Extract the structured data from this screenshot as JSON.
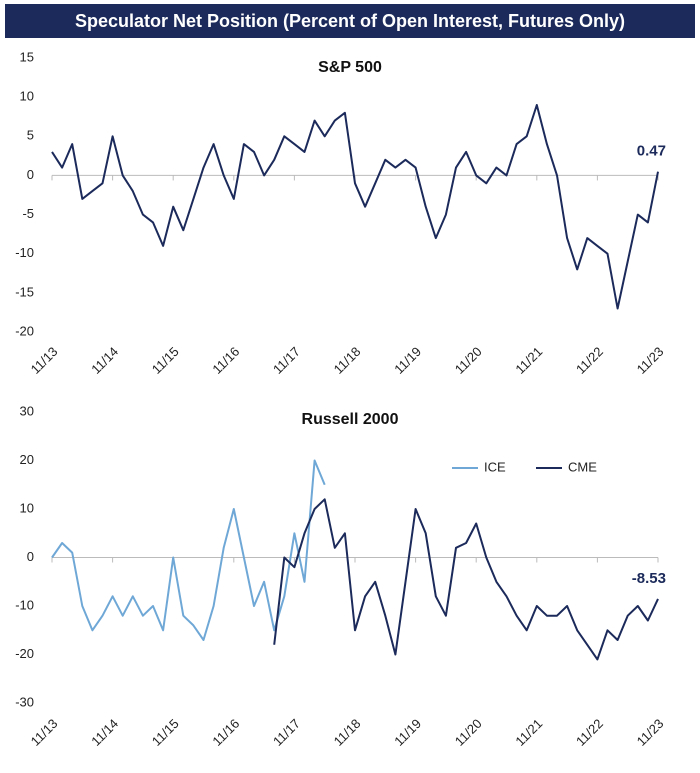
{
  "header": {
    "title": "Speculator Net Position (Percent of Open Interest, Futures Only)"
  },
  "chart_data": [
    {
      "type": "line",
      "title": "S&P 500",
      "categories": [
        "11/13",
        null,
        null,
        null,
        null,
        null,
        "11/14",
        null,
        null,
        null,
        null,
        null,
        "11/15",
        null,
        null,
        null,
        null,
        null,
        "11/16",
        null,
        null,
        null,
        null,
        null,
        "11/17",
        null,
        null,
        null,
        null,
        null,
        "11/18",
        null,
        null,
        null,
        null,
        null,
        "11/19",
        null,
        null,
        null,
        null,
        null,
        "11/20",
        null,
        null,
        null,
        null,
        null,
        "11/21",
        null,
        null,
        null,
        null,
        null,
        "11/22",
        null,
        null,
        null,
        null,
        null,
        "11/23"
      ],
      "series": [
        {
          "name": "S&P 500",
          "color": "#1b2a5a",
          "values": [
            3,
            1,
            4,
            -3,
            -2,
            -1,
            5,
            0,
            -2,
            -5,
            -6,
            -9,
            -4,
            -7,
            -3,
            1,
            4,
            0,
            -3,
            4,
            3,
            0,
            2,
            5,
            4,
            3,
            7,
            5,
            7,
            8,
            -1,
            -4,
            -1,
            2,
            1,
            2,
            1,
            -4,
            -8,
            -5,
            1,
            3,
            0,
            -1,
            1,
            0,
            4,
            5,
            9,
            4,
            0,
            -8,
            -12,
            -8,
            -9,
            -10,
            -17,
            -11,
            -5,
            -6,
            0.47
          ]
        }
      ],
      "annotations": [
        {
          "series": 0,
          "index": 60
        }
      ],
      "ylim": [
        -20,
        15
      ],
      "yticks": [
        -20,
        -15,
        -10,
        -5,
        0,
        5,
        10,
        15
      ],
      "legend": false
    },
    {
      "type": "line",
      "title": "Russell 2000",
      "categories": [
        "11/13",
        null,
        null,
        null,
        null,
        null,
        "11/14",
        null,
        null,
        null,
        null,
        null,
        "11/15",
        null,
        null,
        null,
        null,
        null,
        "11/16",
        null,
        null,
        null,
        null,
        null,
        "11/17",
        null,
        null,
        null,
        null,
        null,
        "11/18",
        null,
        null,
        null,
        null,
        null,
        "11/19",
        null,
        null,
        null,
        null,
        null,
        "11/20",
        null,
        null,
        null,
        null,
        null,
        "11/21",
        null,
        null,
        null,
        null,
        null,
        "11/22",
        null,
        null,
        null,
        null,
        null,
        "11/23"
      ],
      "series": [
        {
          "name": "ICE",
          "color": "#6fa8d6",
          "values": [
            0,
            3,
            1,
            -10,
            -15,
            -12,
            -8,
            -12,
            -8,
            -12,
            -10,
            -15,
            0,
            -12,
            -14,
            -17,
            -10,
            2,
            10,
            0,
            -10,
            -5,
            -15,
            -8,
            5,
            -5,
            20,
            15,
            null,
            null,
            null,
            null,
            null,
            null,
            null,
            null,
            null,
            null,
            null,
            null,
            null,
            null,
            null,
            null,
            null,
            null,
            null,
            null,
            null,
            null,
            null,
            null,
            null,
            null,
            null,
            null,
            null,
            null,
            null,
            null,
            null
          ]
        },
        {
          "name": "CME",
          "color": "#1b2a5a",
          "values": [
            null,
            null,
            null,
            null,
            null,
            null,
            null,
            null,
            null,
            null,
            null,
            null,
            null,
            null,
            null,
            null,
            null,
            null,
            null,
            null,
            null,
            null,
            -18,
            0,
            -2,
            5,
            10,
            12,
            2,
            5,
            -15,
            -8,
            -5,
            -12,
            -20,
            -5,
            10,
            5,
            -8,
            -12,
            2,
            3,
            7,
            0,
            -5,
            -8,
            -12,
            -15,
            -10,
            -12,
            -12,
            -10,
            -15,
            -18,
            -21,
            -15,
            -17,
            -12,
            -10,
            -13,
            -8.53
          ]
        }
      ],
      "annotations": [
        {
          "series": 1,
          "index": 60
        }
      ],
      "ylim": [
        -30,
        30
      ],
      "yticks": [
        -30,
        -20,
        -10,
        0,
        10,
        20,
        30
      ],
      "legend": true
    }
  ]
}
